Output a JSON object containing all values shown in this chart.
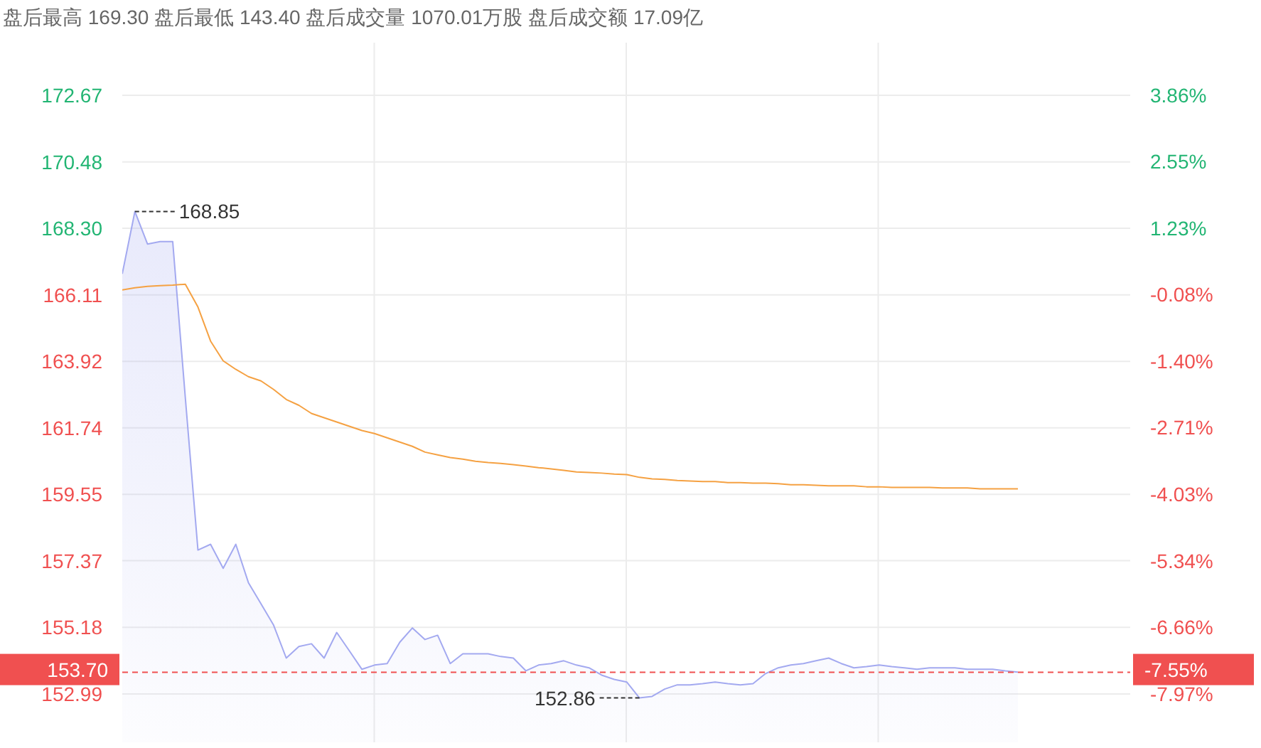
{
  "chart_data": {
    "type": "area",
    "title": "盘后最高 169.30 盘后最低 143.40 盘后成交量 1070.01万股 盘后成交额 17.09亿",
    "categories": [
      null,
      null,
      null,
      null,
      null,
      null,
      null,
      null,
      null,
      null,
      null,
      null,
      null,
      null,
      null,
      null,
      null,
      null,
      null,
      null,
      null,
      null,
      null,
      null,
      null,
      null,
      null,
      null,
      null,
      null,
      null,
      null,
      null,
      null,
      null,
      null,
      null,
      null,
      null,
      null,
      null,
      null,
      null,
      null,
      null,
      null,
      null,
      null,
      null,
      null,
      null,
      null,
      null,
      null,
      null,
      null,
      null,
      null,
      null,
      null,
      null,
      null,
      null,
      null,
      null,
      null,
      null,
      null,
      null,
      null,
      null,
      null
    ],
    "series": [
      {
        "color": "#a3a9f0",
        "values": [
          166.8,
          168.85,
          167.78,
          167.86,
          167.86,
          162.72,
          157.72,
          157.91,
          157.12,
          157.91,
          156.65,
          155.95,
          155.25,
          154.17,
          154.55,
          154.64,
          154.17,
          155.01,
          154.41,
          153.8,
          153.94,
          153.99,
          154.69,
          155.16,
          154.78,
          154.92,
          153.99,
          154.31,
          154.31,
          154.31,
          154.22,
          154.17,
          153.75,
          153.94,
          153.99,
          154.08,
          153.94,
          153.85,
          153.61,
          153.47,
          153.38,
          152.86,
          152.91,
          153.15,
          153.29,
          153.29,
          153.33,
          153.38,
          153.33,
          153.29,
          153.33,
          153.66,
          153.85,
          153.94,
          153.99,
          154.08,
          154.17,
          153.99,
          153.85,
          153.89,
          153.94,
          153.89,
          153.85,
          153.8,
          153.85,
          153.85,
          153.85,
          153.8,
          153.8,
          153.8,
          153.75,
          153.71
        ]
      },
      {
        "type": "line",
        "color": "#f5a142",
        "values": [
          166.27,
          166.34,
          166.39,
          166.41,
          166.43,
          166.46,
          165.71,
          164.59,
          163.94,
          163.66,
          163.42,
          163.28,
          163.0,
          162.67,
          162.48,
          162.21,
          162.07,
          161.93,
          161.79,
          161.65,
          161.55,
          161.41,
          161.27,
          161.13,
          160.94,
          160.85,
          160.76,
          160.71,
          160.64,
          160.6,
          160.57,
          160.53,
          160.48,
          160.43,
          160.39,
          160.34,
          160.29,
          160.27,
          160.25,
          160.22,
          160.2,
          160.11,
          160.06,
          160.04,
          160.01,
          159.99,
          159.97,
          159.97,
          159.94,
          159.94,
          159.92,
          159.92,
          159.9,
          159.87,
          159.87,
          159.85,
          159.83,
          159.83,
          159.83,
          159.8,
          159.8,
          159.78,
          159.78,
          159.78,
          159.78,
          159.76,
          159.76,
          159.76,
          159.73,
          159.73,
          159.73,
          159.73
        ]
      }
    ],
    "ylim": [
      151.4,
      174.4
    ],
    "yticks": [
      152.99,
      155.18,
      157.37,
      159.55,
      161.74,
      163.92,
      166.11,
      {
        "value": 168.3,
        "label": "168.30"
      },
      170.48,
      172.67
    ],
    "y2lim": [
      -8.93,
      4.9
    ],
    "y2ticks": [
      {
        "value": -7.97,
        "label": "-7.97%"
      },
      {
        "value": -6.66,
        "label": "-6.66%"
      },
      {
        "value": -5.34,
        "label": "-5.34%"
      },
      {
        "value": -4.03,
        "label": "-4.03%"
      },
      {
        "value": -2.71,
        "label": "-2.71%"
      },
      {
        "value": -1.4,
        "label": "-1.40%"
      },
      {
        "value": -0.08,
        "label": "-0.08%"
      },
      {
        "value": 1.23,
        "label": "1.23%"
      },
      {
        "value": 2.55,
        "label": "2.55%"
      },
      {
        "value": 3.86,
        "label": "3.86%"
      }
    ],
    "ref_lines": [
      {
        "axis": "y",
        "value": 153.7,
        "label": "153.70",
        "color": "#f05050",
        "line_style": "dashed"
      }
    ],
    "annotations": [
      "168.85",
      "152.86",
      "-7.55%"
    ],
    "grid": true,
    "legend": false,
    "marker": "none",
    "line_style": "solid"
  }
}
